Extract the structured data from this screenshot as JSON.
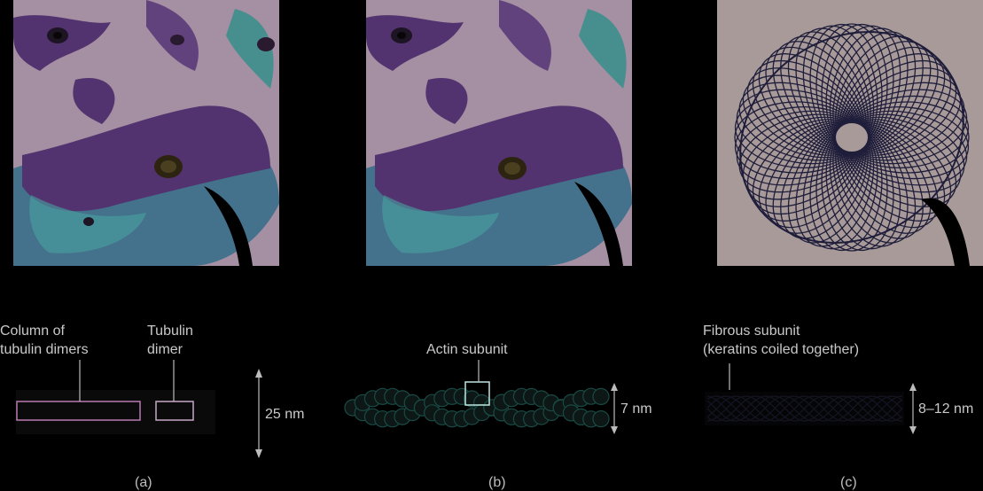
{
  "panels": [
    {
      "id": "a",
      "caption": "(a)",
      "labels": {
        "column": [
          "Column of",
          "tubulin dimers"
        ],
        "dimer": [
          "Tubulin",
          "dimer"
        ]
      },
      "dimension": "25 nm"
    },
    {
      "id": "b",
      "caption": "(b)",
      "labels": {
        "subunit": "Actin subunit"
      },
      "dimension": "7 nm"
    },
    {
      "id": "c",
      "caption": "(c)",
      "labels": {
        "subunit": [
          "Fibrous subunit",
          "(keratins coiled together)"
        ]
      },
      "dimension": "8–12 nm"
    }
  ],
  "colors": {
    "cell_background": "#a58fa2",
    "cytoskeleton_purple": "#4a2a6a",
    "cytoskeleton_teal": "#3fa7a0",
    "keratin_background": "#a89a98",
    "keratin_fibers": "#1e1d3a",
    "label_box": "#b97bb3",
    "actin_teal": "#1a4a44"
  }
}
